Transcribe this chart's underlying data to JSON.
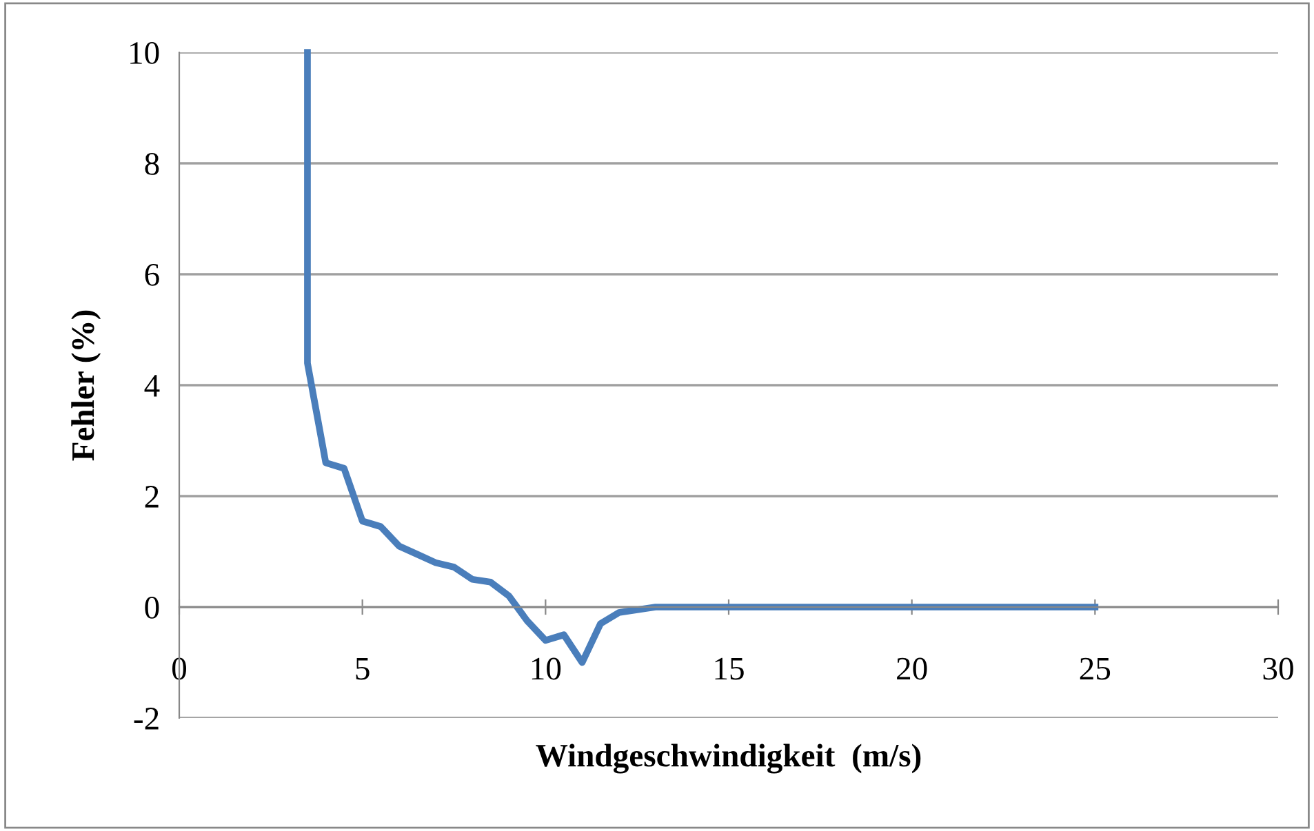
{
  "chart_data": {
    "type": "line",
    "xlabel": "Windgeschwindigkeit  (m/s)",
    "ylabel": "Fehler (%)",
    "x": [
      3.5,
      3.5,
      3.75,
      4,
      4.5,
      5,
      5.5,
      6,
      6.5,
      7,
      7.5,
      8,
      8.5,
      9,
      9.5,
      10,
      10.5,
      11,
      11.5,
      12,
      12.5,
      13,
      14,
      15,
      16,
      17,
      18,
      19,
      20,
      21,
      22,
      23,
      24,
      25
    ],
    "series": [
      {
        "color": "#4a7ebb",
        "values": [
          10,
          4.4,
          3.5,
          2.6,
          2.5,
          1.55,
          1.45,
          1.1,
          0.95,
          0.8,
          0.72,
          0.5,
          0.45,
          0.2,
          -0.25,
          -0.6,
          -0.5,
          -1.0,
          -0.3,
          -0.1,
          -0.05,
          0,
          0,
          0,
          0,
          0,
          0,
          0,
          0,
          0,
          0,
          0,
          0,
          0
        ]
      }
    ],
    "xlim": [
      0,
      30
    ],
    "ylim": [
      -2,
      10
    ],
    "xticks": [
      0,
      5,
      10,
      15,
      20,
      25,
      30
    ],
    "yticks": [
      -2,
      0,
      2,
      4,
      6,
      8,
      10
    ],
    "grid": "y",
    "legend": false,
    "marker": "none",
    "line_style": "solid"
  }
}
